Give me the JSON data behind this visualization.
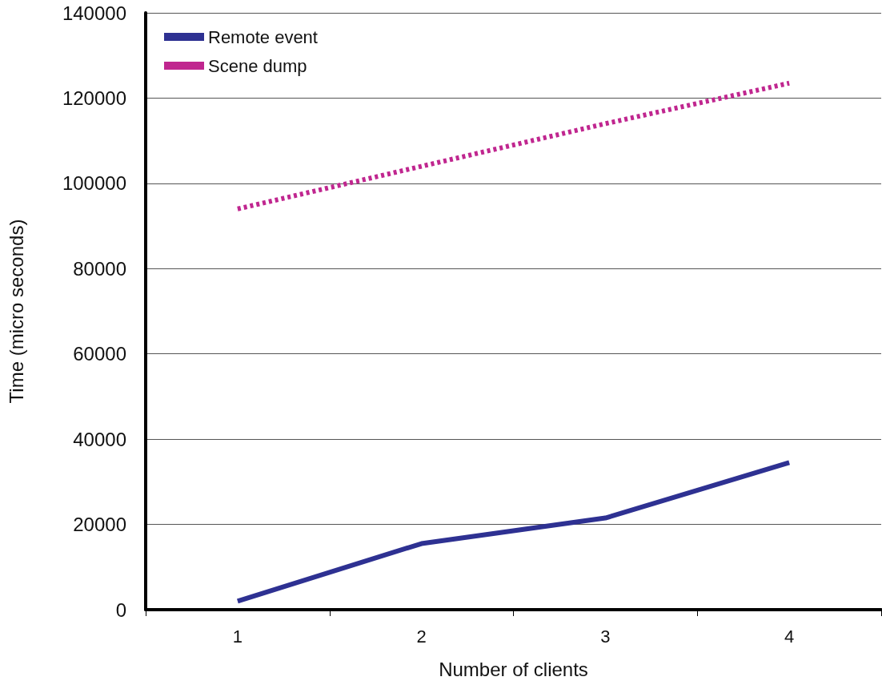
{
  "chart_data": {
    "type": "line",
    "xlabel": "Number of clients",
    "ylabel": "Time (micro seconds)",
    "categories": [
      "1",
      "2",
      "3",
      "4"
    ],
    "series": [
      {
        "name": "Remote event",
        "color": "#2e3192",
        "values": [
          2000,
          15500,
          21500,
          34500
        ],
        "line_style": "solid"
      },
      {
        "name": "Scene dump",
        "color": "#c0268f",
        "values": [
          94000,
          104000,
          114000,
          123500
        ],
        "line_style": "dotted"
      }
    ],
    "ylim": [
      0,
      140000
    ],
    "yticks": [
      0,
      20000,
      40000,
      60000,
      80000,
      100000,
      120000,
      140000
    ],
    "grid": "y",
    "legend": "top left",
    "marker": "none"
  }
}
